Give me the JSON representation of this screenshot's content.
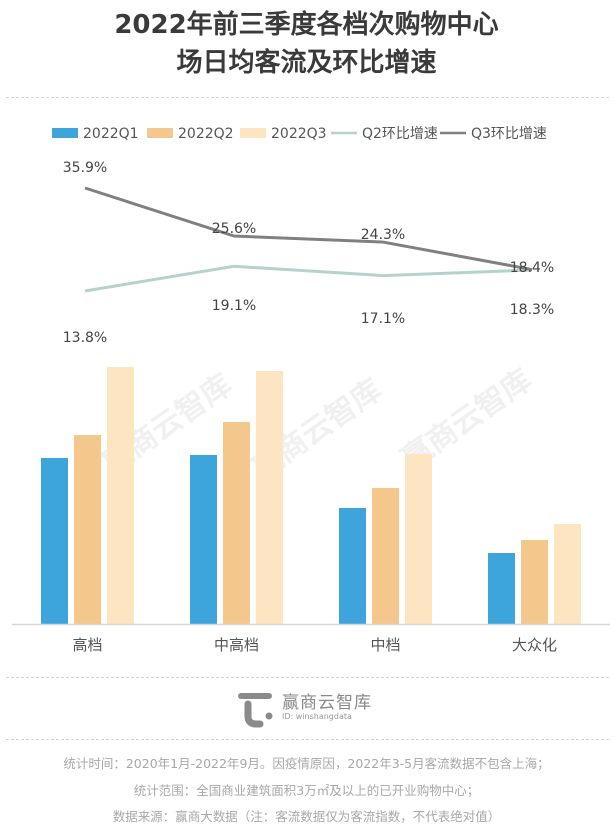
{
  "title_lines": [
    "2022年前三季度各档次购物中心",
    "场日均客流及环比增速"
  ],
  "watermark_text": "赢商云智库",
  "colors": {
    "q1": "#3ea4dc",
    "q2": "#f4c78d",
    "q3": "#fde5c1",
    "q2_line": "#b5d3cc",
    "q3_line": "#808080",
    "axis": "#d8d8d8"
  },
  "chart_data": {
    "type": "bar+line",
    "title": "2022年前三季度各档次购物中心场日均客流及环比增速",
    "categories": [
      "高档",
      "中高档",
      "中档",
      "大众化"
    ],
    "bar_series": [
      {
        "name": "2022Q1",
        "values": [
          166,
          169,
          116,
          71
        ]
      },
      {
        "name": "2022Q2",
        "values": [
          189,
          202,
          136,
          84
        ]
      },
      {
        "name": "2022Q3",
        "values": [
          257,
          253,
          170,
          100
        ]
      }
    ],
    "bar_value_note": "relative index (no axis ticks shown)",
    "line_series": [
      {
        "name": "Q2环比增速",
        "values": [
          13.8,
          19.1,
          17.1,
          18.3
        ],
        "labels": [
          "13.8%",
          "19.1%",
          "17.1%",
          "18.3%"
        ]
      },
      {
        "name": "Q3环比增速",
        "values": [
          35.9,
          25.6,
          24.3,
          18.4
        ],
        "labels": [
          "35.9%",
          "25.6%",
          "24.3%",
          "18.4%"
        ]
      }
    ],
    "legend": [
      "2022Q1",
      "2022Q2",
      "2022Q3",
      "Q2环比增速",
      "Q3环比增速"
    ],
    "legend_position": "top",
    "grid": false,
    "xlabel": "",
    "ylabel": ""
  },
  "logo": {
    "name": "赢商云智库",
    "id": "ID: winshangdata"
  },
  "footnotes": [
    "统计时间：2020年1月-2022年9月。因疫情原因，2022年3-5月客流数据不包含上海；",
    "统计范围：全国商业建筑面积3万㎡及以上的已开业购物中心；",
    "数据来源：赢商大数据（注：客流数据仅为客流指数，不代表绝对值）"
  ]
}
